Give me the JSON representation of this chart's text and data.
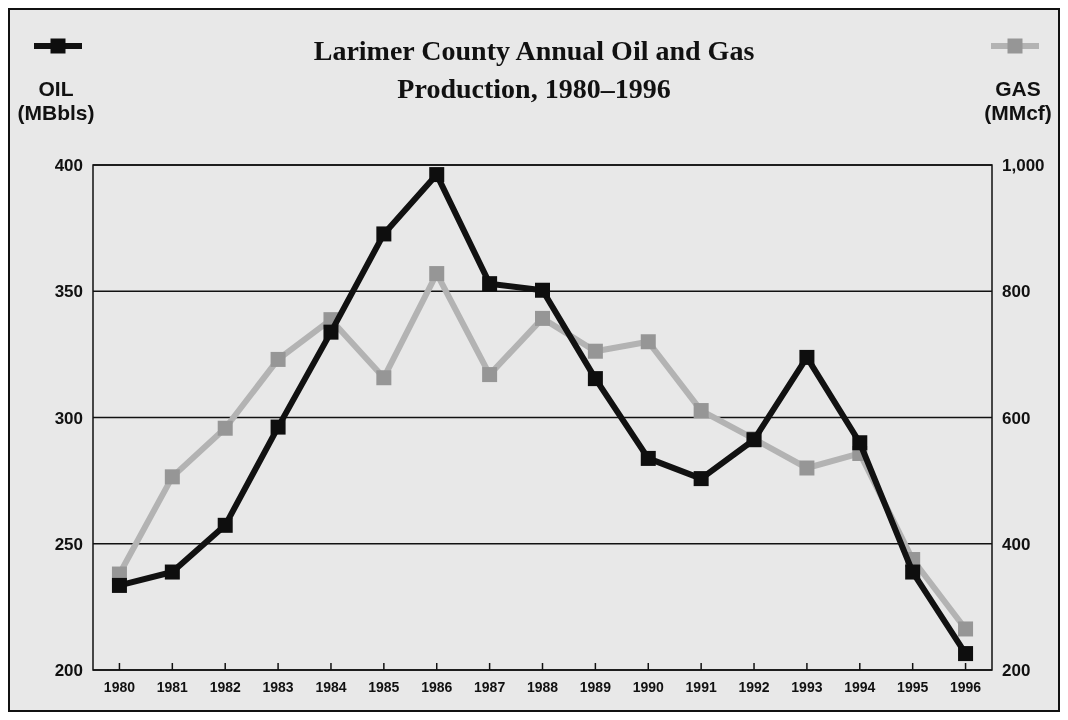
{
  "chart_data": {
    "type": "line",
    "title": "Larimer County Annual Oil and Gas Production, 1980–1996",
    "ylabel": "OIL (MBbls)",
    "y2label": "GAS (MMcf)",
    "categories": [
      "1980",
      "1981",
      "1982",
      "1983",
      "1984",
      "1985",
      "1986",
      "1987",
      "1988",
      "1989",
      "1990",
      "1991",
      "1992",
      "1993",
      "1994",
      "1995",
      "1996"
    ],
    "series": [
      {
        "color": "#b3b3b3",
        "axis": "y2",
        "values": [
          352,
          506,
          583,
          692,
          755,
          663,
          828,
          668,
          757,
          705,
          720,
          611,
          566,
          520,
          543,
          375,
          265
        ]
      },
      {
        "color": "#111111",
        "values": [
          233.5,
          238.8,
          257.3,
          296.2,
          333.8,
          372.7,
          396.2,
          353,
          350.4,
          315.4,
          283.8,
          275.8,
          291.2,
          323.8,
          290,
          238.8,
          206.5
        ]
      }
    ],
    "ylim": [
      200,
      400
    ],
    "yticks": [
      200,
      250,
      300,
      350,
      400
    ],
    "y2lim": [
      200,
      1000
    ],
    "y2ticks": [
      200,
      400,
      600,
      800,
      {
        "value": 1000,
        "label": "1,000"
      }
    ],
    "grid": "y",
    "marker": "square",
    "line_style": "solid"
  }
}
